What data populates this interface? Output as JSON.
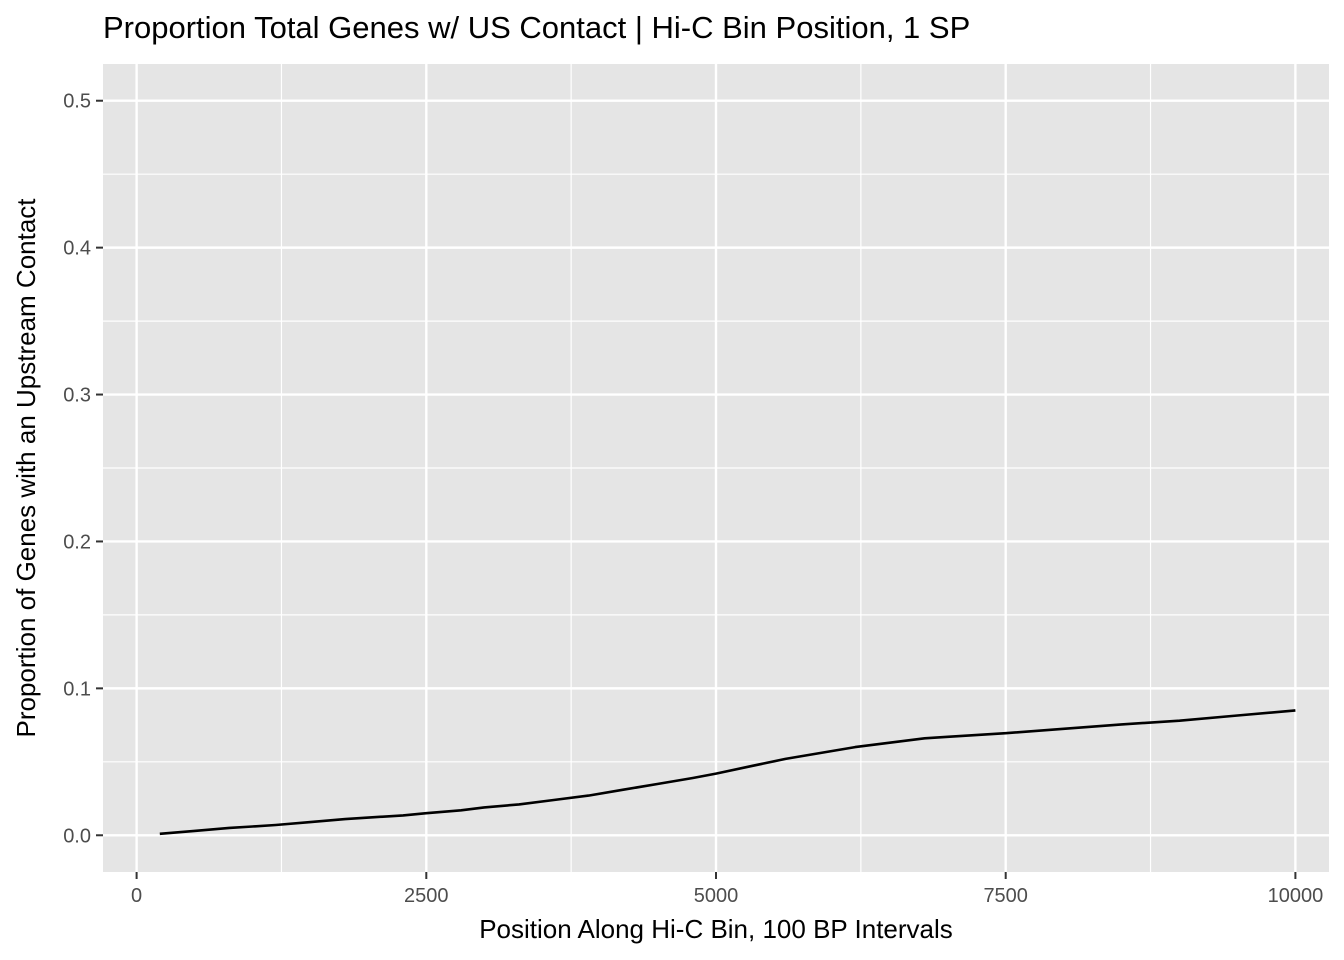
{
  "chart_data": {
    "type": "line",
    "title": "Proportion Total Genes w/ US Contact | Hi-C Bin Position, 1 SP",
    "xlabel": "Position Along Hi-C Bin, 100 BP Intervals",
    "ylabel": "Proportion of Genes with an Upstream Contact",
    "xlim": [
      -290,
      10290
    ],
    "ylim": [
      -0.025,
      0.525
    ],
    "x_ticks": [
      0,
      2500,
      5000,
      7500,
      10000
    ],
    "x_tick_labels": [
      "0",
      "2500",
      "5000",
      "7500",
      "10000"
    ],
    "y_ticks": [
      0.0,
      0.1,
      0.2,
      0.3,
      0.4,
      0.5
    ],
    "y_tick_labels": [
      "0.0",
      "0.1",
      "0.2",
      "0.3",
      "0.4",
      "0.5"
    ],
    "grid": true,
    "legend": "none",
    "colors": {
      "panel": "#e5e5e5",
      "grid": "#ffffff",
      "line": "#000000"
    },
    "series": [
      {
        "x": [
          200,
          500,
          800,
          1000,
          1200,
          1500,
          1800,
          2000,
          2300,
          2500,
          2800,
          3000,
          3300,
          3600,
          3900,
          4200,
          4500,
          4800,
          5000,
          5300,
          5600,
          5900,
          6200,
          6500,
          6800,
          7000,
          7500,
          8000,
          8500,
          9000,
          9500,
          10000
        ],
        "values": [
          0.001,
          0.003,
          0.005,
          0.006,
          0.007,
          0.009,
          0.011,
          0.012,
          0.0135,
          0.015,
          0.017,
          0.019,
          0.021,
          0.024,
          0.027,
          0.031,
          0.035,
          0.039,
          0.042,
          0.047,
          0.052,
          0.056,
          0.06,
          0.063,
          0.066,
          0.067,
          0.0695,
          0.0725,
          0.0755,
          0.078,
          0.0815,
          0.085
        ]
      }
    ]
  }
}
